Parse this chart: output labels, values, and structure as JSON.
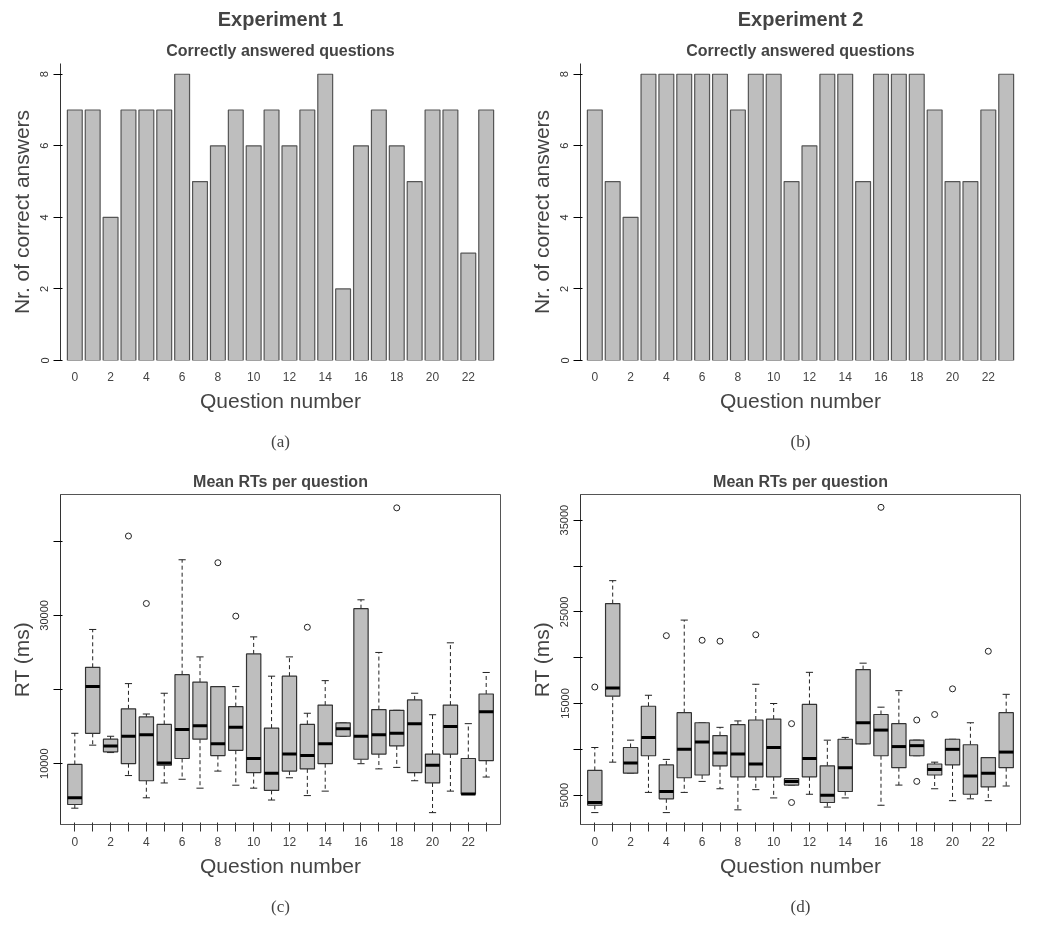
{
  "chart_data": [
    {
      "type": "bar",
      "title": "Experiment 1",
      "subtitle": "Correctly answered questions",
      "xlabel": "Question number",
      "ylabel": "Nr. of correct answers",
      "annotations": [
        "(a)"
      ],
      "color": "#bebebe",
      "categories": [
        "0",
        null,
        "2",
        null,
        "4",
        null,
        "6",
        null,
        "8",
        null,
        "10",
        null,
        "12",
        null,
        "14",
        null,
        "16",
        null,
        "18",
        null,
        "20",
        null,
        "22",
        null
      ],
      "values": [
        7,
        7,
        4,
        7,
        7,
        7,
        8,
        5,
        6,
        7,
        6,
        7,
        6,
        7,
        8,
        2,
        6,
        7,
        6,
        5,
        7,
        7,
        3,
        7
      ],
      "ylim": [
        0,
        8.3
      ],
      "yticks": [
        0,
        2,
        4,
        6,
        8
      ]
    },
    {
      "type": "bar",
      "title": "Experiment 2",
      "subtitle": "Correctly answered questions",
      "xlabel": "Question number",
      "ylabel": "Nr. of correct answers",
      "annotations": [
        "(b)"
      ],
      "color": "#bebebe",
      "categories": [
        "0",
        null,
        "2",
        null,
        "4",
        null,
        "6",
        null,
        "8",
        null,
        "10",
        null,
        "12",
        null,
        "14",
        null,
        "16",
        null,
        "18",
        null,
        "20",
        null,
        "22",
        null
      ],
      "values": [
        7,
        5,
        4,
        8,
        8,
        8,
        8,
        8,
        7,
        8,
        8,
        5,
        6,
        8,
        8,
        5,
        8,
        8,
        8,
        7,
        5,
        5,
        7,
        8
      ],
      "ylim": [
        0,
        8.3
      ],
      "yticks": [
        0,
        2,
        4,
        6,
        8
      ]
    },
    {
      "type": "box",
      "title": "Mean RTs per question",
      "xlabel": "Question number",
      "ylabel": "RT (ms)",
      "annotations": [
        "(c)"
      ],
      "color": "#bebebe",
      "categories": [
        "0",
        null,
        "2",
        null,
        "4",
        null,
        "6",
        null,
        "8",
        null,
        "10",
        null,
        "12",
        null,
        "14",
        null,
        "16",
        null,
        "18",
        null,
        "20",
        null,
        "22",
        null
      ],
      "ylim": [
        1800,
        46300
      ],
      "yticks": [
        10000,
        {
          "value": 20000,
          "label": null
        },
        30000,
        {
          "value": 40000,
          "label": null
        }
      ],
      "boxes": [
        {
          "low": 4000,
          "q1": 4500,
          "median": 5400,
          "q3": 9900,
          "high": 14100
        },
        {
          "low": 12500,
          "q1": 14100,
          "median": 20400,
          "q3": 23000,
          "high": 28100
        },
        {
          "low": 11500,
          "q1": 11600,
          "median": 12400,
          "q3": 13300,
          "high": 13700
        },
        {
          "low": 8400,
          "q1": 10000,
          "median": 13700,
          "q3": 17400,
          "high": 20800,
          "outliers": [
            40700
          ]
        },
        {
          "low": 5400,
          "q1": 7700,
          "median": 13900,
          "q3": 16300,
          "high": 16700,
          "outliers": [
            31600
          ]
        },
        {
          "low": 7400,
          "q1": 9800,
          "median": 10100,
          "q3": 15300,
          "high": 19500
        },
        {
          "low": 7900,
          "q1": 10700,
          "median": 14600,
          "q3": 22000,
          "high": 37500
        },
        {
          "low": 6700,
          "q1": 13300,
          "median": 15100,
          "q3": 21000,
          "high": 24400
        },
        {
          "low": 9000,
          "q1": 11100,
          "median": 12700,
          "q3": 20400,
          "high": 20400,
          "outliers": [
            37100
          ]
        },
        {
          "low": 7100,
          "q1": 11800,
          "median": 14900,
          "q3": 17700,
          "high": 20400,
          "outliers": [
            29900
          ]
        },
        {
          "low": 6700,
          "q1": 8800,
          "median": 10700,
          "q3": 24800,
          "high": 27100
        },
        {
          "low": 5100,
          "q1": 6400,
          "median": 8700,
          "q3": 14800,
          "high": 21800
        },
        {
          "low": 8100,
          "q1": 9000,
          "median": 11300,
          "q3": 21800,
          "high": 24400
        },
        {
          "low": 5700,
          "q1": 9300,
          "median": 11100,
          "q3": 15300,
          "high": 16800,
          "outliers": [
            28400
          ]
        },
        {
          "low": 6300,
          "q1": 10000,
          "median": 12700,
          "q3": 17900,
          "high": 21200
        },
        {
          "low": 13700,
          "q1": 13700,
          "median": 14700,
          "q3": 15500,
          "high": 15500
        },
        {
          "low": 10000,
          "q1": 10600,
          "median": 13700,
          "q3": 30900,
          "high": 32100
        },
        {
          "low": 9300,
          "q1": 11300,
          "median": 13900,
          "q3": 17300,
          "high": 25000
        },
        {
          "low": 9500,
          "q1": 12400,
          "median": 14100,
          "q3": 17200,
          "high": 17200,
          "outliers": [
            44500
          ]
        },
        {
          "low": 7700,
          "q1": 8800,
          "median": 15400,
          "q3": 18600,
          "high": 19500
        },
        {
          "low": 3400,
          "q1": 7400,
          "median": 9800,
          "q3": 11300,
          "high": 16600
        },
        {
          "low": 6300,
          "q1": 11300,
          "median": 15000,
          "q3": 17900,
          "high": 26300
        },
        {
          "low": 5900,
          "q1": 5900,
          "median": 5900,
          "q3": 10700,
          "high": 15400
        },
        {
          "low": 8200,
          "q1": 10400,
          "median": 17000,
          "q3": 19400,
          "high": 22300
        }
      ]
    },
    {
      "type": "box",
      "title": "Mean RTs per question",
      "xlabel": "Question number",
      "ylabel": "RT (ms)",
      "annotations": [
        "(d)"
      ],
      "color": "#bebebe",
      "categories": [
        "0",
        null,
        "2",
        null,
        "4",
        null,
        "6",
        null,
        "8",
        null,
        "10",
        null,
        "12",
        null,
        "14",
        null,
        "16",
        null,
        "18",
        null,
        "20",
        null,
        "22",
        null
      ],
      "ylim": [
        1800,
        37800
      ],
      "yticks": [
        5000,
        {
          "value": 10000,
          "label": null
        },
        15000,
        {
          "value": 20000,
          "label": null
        },
        25000,
        {
          "value": 30000,
          "label": null
        },
        35000
      ],
      "boxes": [
        {
          "low": 3100,
          "q1": 3900,
          "median": 4200,
          "q3": 7700,
          "high": 10200,
          "outliers": [
            16800
          ]
        },
        {
          "low": 8600,
          "q1": 15800,
          "median": 16700,
          "q3": 25900,
          "high": 28400
        },
        {
          "low": 7400,
          "q1": 7400,
          "median": 8500,
          "q3": 10200,
          "high": 11000
        },
        {
          "low": 5300,
          "q1": 9300,
          "median": 11300,
          "q3": 14700,
          "high": 15900
        },
        {
          "low": 3100,
          "q1": 4600,
          "median": 5400,
          "q3": 8300,
          "high": 8900,
          "outliers": [
            22400
          ]
        },
        {
          "low": 5300,
          "q1": 6900,
          "median": 10000,
          "q3": 14000,
          "high": 24100
        },
        {
          "low": 6500,
          "q1": 7200,
          "median": 10800,
          "q3": 12900,
          "high": 12900,
          "outliers": [
            21900
          ]
        },
        {
          "low": 5700,
          "q1": 8200,
          "median": 9600,
          "q3": 11500,
          "high": 12400,
          "outliers": [
            21800
          ]
        },
        {
          "low": 3400,
          "q1": 7000,
          "median": 9500,
          "q3": 12700,
          "high": 13100
        },
        {
          "low": 5600,
          "q1": 7000,
          "median": 8400,
          "q3": 13200,
          "high": 17100,
          "outliers": [
            22500
          ]
        },
        {
          "low": 4700,
          "q1": 7000,
          "median": 10200,
          "q3": 13300,
          "high": 15000
        },
        {
          "low": 6100,
          "q1": 6100,
          "median": 6500,
          "q3": 6800,
          "high": 6800,
          "outliers": [
            12800,
            4200
          ]
        },
        {
          "low": 5100,
          "q1": 7000,
          "median": 9000,
          "q3": 14900,
          "high": 18400
        },
        {
          "low": 3700,
          "q1": 4200,
          "median": 5000,
          "q3": 8200,
          "high": 11000
        },
        {
          "low": 4700,
          "q1": 5400,
          "median": 8000,
          "q3": 11100,
          "high": 11300
        },
        {
          "low": 10600,
          "q1": 10600,
          "median": 12900,
          "q3": 18700,
          "high": 19400
        },
        {
          "low": 3900,
          "q1": 9300,
          "median": 12100,
          "q3": 13800,
          "high": 14600,
          "outliers": [
            36400
          ]
        },
        {
          "low": 6100,
          "q1": 8000,
          "median": 10300,
          "q3": 12800,
          "high": 16400
        },
        {
          "low": 9300,
          "q1": 9300,
          "median": 10400,
          "q3": 11000,
          "high": 11000,
          "outliers": [
            13200,
            6500
          ]
        },
        {
          "low": 5700,
          "q1": 7200,
          "median": 7800,
          "q3": 8400,
          "high": 8600,
          "outliers": [
            13800
          ]
        },
        {
          "low": 4400,
          "q1": 8300,
          "median": 10000,
          "q3": 11100,
          "high": 11100,
          "outliers": [
            16600
          ]
        },
        {
          "low": 4600,
          "q1": 5100,
          "median": 7100,
          "q3": 10500,
          "high": 12900
        },
        {
          "low": 4400,
          "q1": 5900,
          "median": 7400,
          "q3": 9100,
          "high": 9100,
          "outliers": [
            20700
          ]
        },
        {
          "low": 6000,
          "q1": 8000,
          "median": 9700,
          "q3": 14000,
          "high": 16000
        }
      ]
    }
  ]
}
